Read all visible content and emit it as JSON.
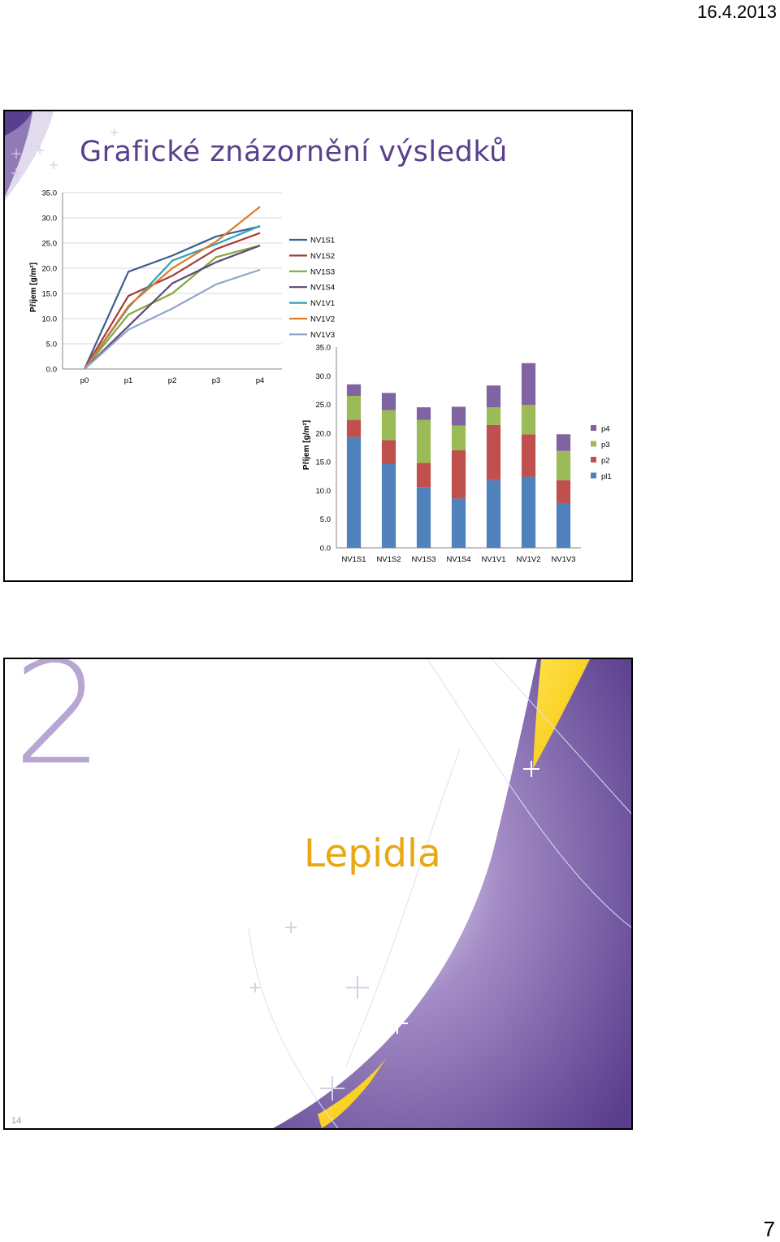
{
  "header": {
    "date": "16.4.2013"
  },
  "footer": {
    "page_number": "7"
  },
  "slide1": {
    "title": "Grafické znázornění výsledků",
    "colors": {
      "title": "#5a3f8e",
      "accent_purple": "#5a3f8e"
    }
  },
  "slide2": {
    "section_number": "2",
    "title": "Lepidla",
    "slide_number": "14",
    "colors": {
      "title": "#e8a813",
      "purple": "#5a3f8e",
      "light_purple": "#b7a6d2",
      "yellow": "#f7d000"
    }
  },
  "chart_data": [
    {
      "type": "line",
      "ylabel": "Příjem [g/m²]",
      "ylim": [
        0,
        35
      ],
      "yticks": [
        "0.0",
        "5.0",
        "10.0",
        "15.0",
        "20.0",
        "25.0",
        "30.0",
        "35.0"
      ],
      "categories": [
        "p0",
        "p1",
        "p2",
        "p3",
        "p4"
      ],
      "grid": "horizontal",
      "legend_position": "right",
      "series": [
        {
          "name": "NV1S1",
          "color": "#3b5f8f",
          "values": [
            0,
            19.3,
            22.5,
            26.3,
            28.3
          ]
        },
        {
          "name": "NV1S2",
          "color": "#a23c3a",
          "values": [
            0,
            14.5,
            18.5,
            23.8,
            27.0
          ]
        },
        {
          "name": "NV1S3",
          "color": "#85a640",
          "values": [
            0,
            10.8,
            15.0,
            22.2,
            24.5
          ]
        },
        {
          "name": "NV1S4",
          "color": "#5d4878",
          "values": [
            0,
            8.5,
            17.0,
            21.2,
            24.5
          ]
        },
        {
          "name": "NV1V1",
          "color": "#30a0b8",
          "values": [
            0,
            12.2,
            21.5,
            24.8,
            28.4
          ]
        },
        {
          "name": "NV1V2",
          "color": "#e07b28",
          "values": [
            0,
            12.5,
            20.0,
            25.3,
            32.2
          ]
        },
        {
          "name": "NV1V3",
          "color": "#8fa6cc",
          "values": [
            0,
            7.8,
            12.0,
            16.8,
            19.7
          ]
        }
      ]
    },
    {
      "type": "bar",
      "stacked": true,
      "ylabel": "Příjem [g/m²]",
      "ylim": [
        0,
        35
      ],
      "yticks": [
        "0.0",
        "5.0",
        "10.0",
        "15.0",
        "20.0",
        "25.0",
        "30.0",
        "35.0"
      ],
      "categories": [
        "NV1S1",
        "NV1S2",
        "NV1S3",
        "NV1S4",
        "NV1V1",
        "NV1V2",
        "NV1V3"
      ],
      "legend_position": "right",
      "legend_order": [
        "p4",
        "p3",
        "p2",
        "pl1"
      ],
      "series": [
        {
          "name": "pl1",
          "color": "#4f81bd",
          "values": [
            19.3,
            14.6,
            10.6,
            8.6,
            11.8,
            12.4,
            7.8
          ]
        },
        {
          "name": "p2",
          "color": "#c0504d",
          "values": [
            3.0,
            4.2,
            4.2,
            8.4,
            9.6,
            7.4,
            4.0
          ]
        },
        {
          "name": "p3",
          "color": "#9bbb59",
          "values": [
            4.2,
            5.2,
            7.5,
            4.3,
            3.1,
            5.1,
            5.1
          ]
        },
        {
          "name": "p4",
          "color": "#8064a2",
          "values": [
            2.0,
            3.0,
            2.2,
            3.3,
            3.8,
            7.3,
            2.9
          ]
        }
      ]
    }
  ]
}
